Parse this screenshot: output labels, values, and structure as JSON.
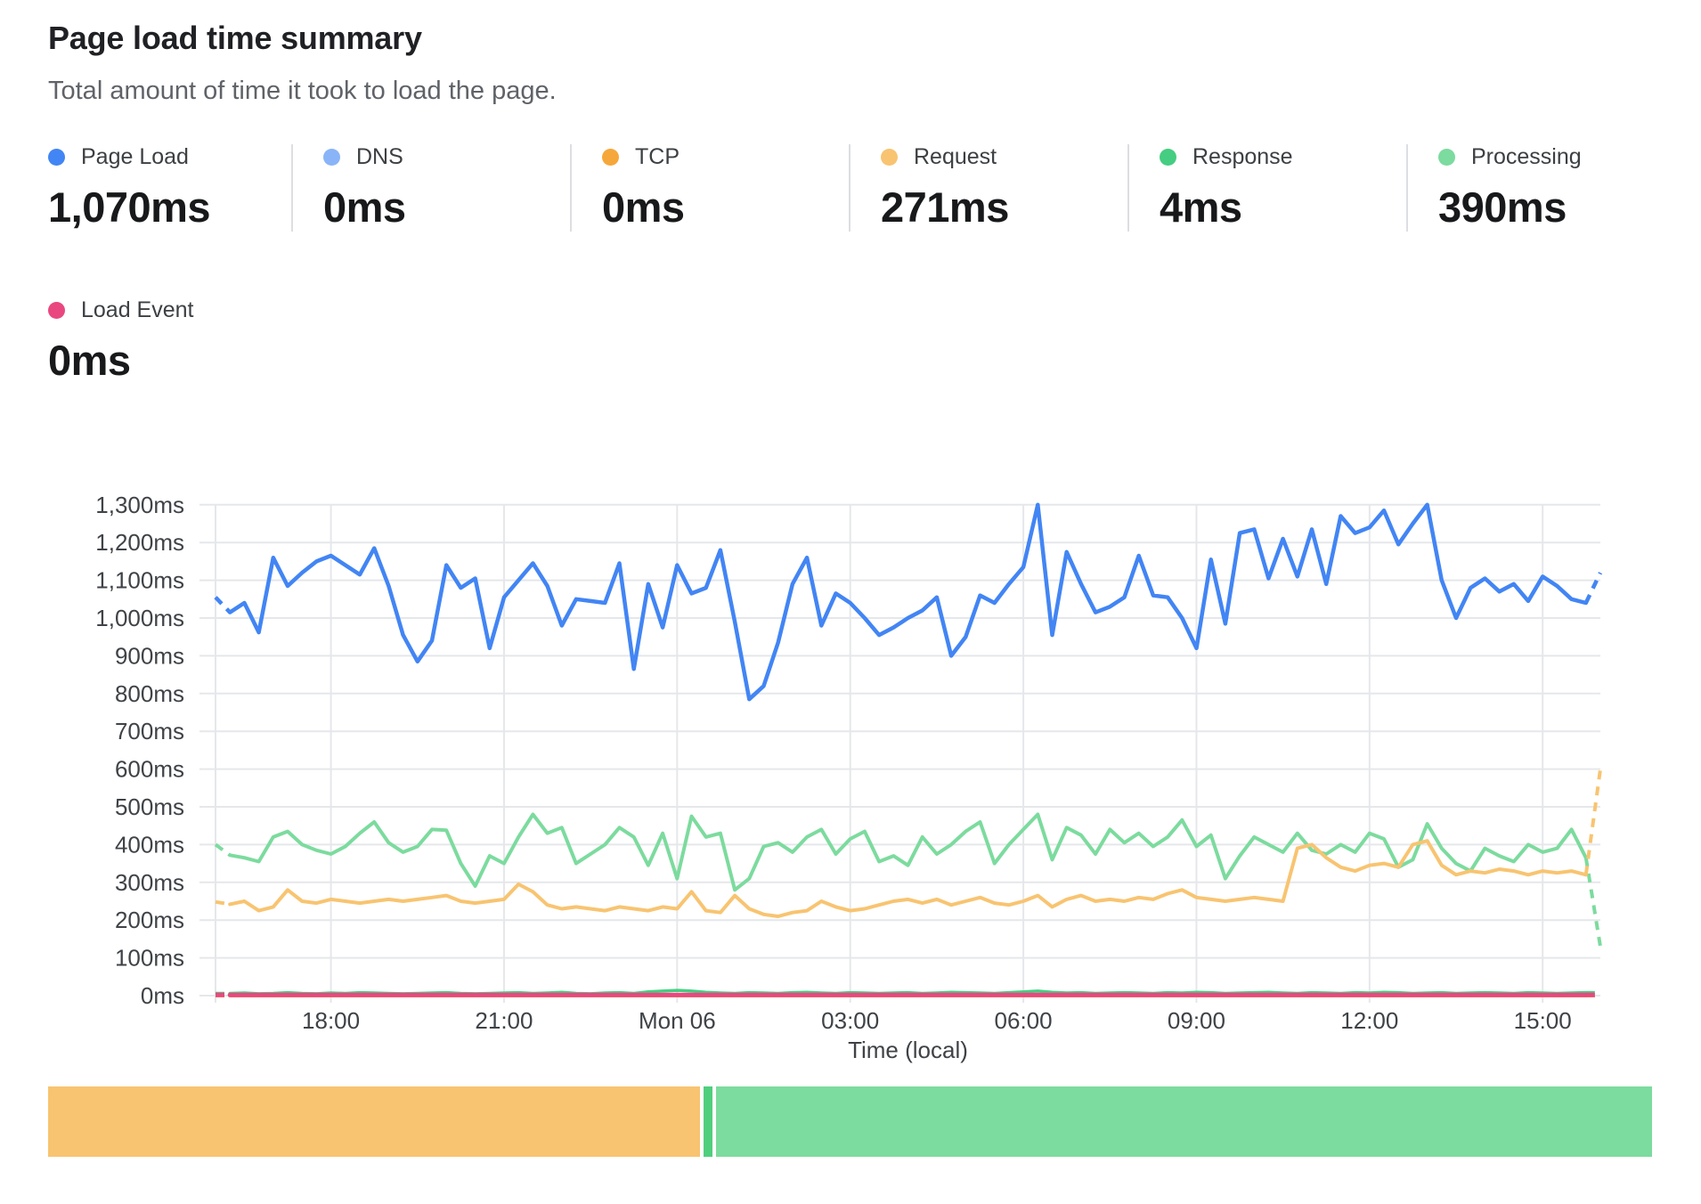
{
  "header": {
    "title": "Page load time summary",
    "subtitle": "Total amount of time it took to load the page."
  },
  "stats": [
    {
      "label": "Page Load",
      "value": "1,070ms",
      "color": "#4285f4"
    },
    {
      "label": "DNS",
      "value": "0ms",
      "color": "#8ab4f8"
    },
    {
      "label": "TCP",
      "value": "0ms",
      "color": "#f6a73b"
    },
    {
      "label": "Request",
      "value": "271ms",
      "color": "#f8c471"
    },
    {
      "label": "Response",
      "value": "4ms",
      "color": "#45cd81"
    },
    {
      "label": "Processing",
      "value": "390ms",
      "color": "#7cdb9e"
    },
    {
      "label": "Load Event",
      "value": "0ms",
      "color": "#e9477f"
    }
  ],
  "chart_data": {
    "type": "line",
    "title": "Page load time summary",
    "xlabel": "Time (local)",
    "ylabel": "",
    "grid": true,
    "ylim": [
      0,
      1300
    ],
    "x_range_hours": 24,
    "points_per_series": 97,
    "y_ticks": [
      {
        "value": 0,
        "label": "0ms"
      },
      {
        "value": 100,
        "label": "100ms"
      },
      {
        "value": 200,
        "label": "200ms"
      },
      {
        "value": 300,
        "label": "300ms"
      },
      {
        "value": 400,
        "label": "400ms"
      },
      {
        "value": 500,
        "label": "500ms"
      },
      {
        "value": 600,
        "label": "600ms"
      },
      {
        "value": 700,
        "label": "700ms"
      },
      {
        "value": 800,
        "label": "800ms"
      },
      {
        "value": 900,
        "label": "900ms"
      },
      {
        "value": 1000,
        "label": "1,000ms"
      },
      {
        "value": 1100,
        "label": "1,100ms"
      },
      {
        "value": 1200,
        "label": "1,200ms"
      },
      {
        "value": 1300,
        "label": "1,300ms"
      }
    ],
    "x_ticks": [
      {
        "index": 8,
        "label": "18:00"
      },
      {
        "index": 20,
        "label": "21:00"
      },
      {
        "index": 32,
        "label": "Mon 06"
      },
      {
        "index": 44,
        "label": "03:00"
      },
      {
        "index": 56,
        "label": "06:00"
      },
      {
        "index": 68,
        "label": "09:00"
      },
      {
        "index": 80,
        "label": "12:00"
      },
      {
        "index": 92,
        "label": "15:00"
      }
    ],
    "series": [
      {
        "name": "DNS",
        "color": "#8ab4f8",
        "width": 4,
        "constant": 0
      },
      {
        "name": "TCP",
        "color": "#f6a73b",
        "width": 4,
        "constant": 0
      },
      {
        "name": "Response",
        "color": "#45cd81",
        "width": 3.5,
        "values": [
          6,
          6,
          7,
          5,
          6,
          8,
          6,
          5,
          7,
          6,
          8,
          7,
          6,
          5,
          6,
          7,
          8,
          6,
          5,
          6,
          7,
          8,
          6,
          7,
          9,
          6,
          5,
          7,
          8,
          6,
          10,
          12,
          14,
          12,
          9,
          7,
          6,
          8,
          7,
          6,
          8,
          9,
          7,
          6,
          8,
          7,
          6,
          7,
          8,
          6,
          7,
          9,
          8,
          7,
          6,
          8,
          10,
          12,
          9,
          7,
          8,
          6,
          7,
          8,
          7,
          6,
          8,
          7,
          9,
          8,
          6,
          7,
          8,
          9,
          7,
          6,
          8,
          7,
          6,
          8,
          7,
          9,
          8,
          6,
          7,
          8,
          6,
          7,
          8,
          7,
          6,
          8,
          7,
          6,
          7,
          8,
          8
        ]
      },
      {
        "name": "Processing",
        "color": "#7cdb9e",
        "width": 4,
        "values": [
          400,
          372,
          365,
          355,
          420,
          435,
          400,
          385,
          375,
          395,
          430,
          460,
          405,
          380,
          395,
          440,
          438,
          350,
          290,
          370,
          350,
          420,
          480,
          430,
          445,
          350,
          375,
          400,
          445,
          420,
          345,
          430,
          310,
          475,
          420,
          430,
          280,
          310,
          395,
          405,
          380,
          420,
          440,
          375,
          415,
          435,
          355,
          370,
          345,
          420,
          375,
          400,
          435,
          460,
          350,
          400,
          440,
          480,
          360,
          445,
          425,
          375,
          440,
          405,
          430,
          395,
          420,
          465,
          395,
          425,
          310,
          370,
          420,
          400,
          380,
          430,
          385,
          375,
          400,
          380,
          430,
          415,
          340,
          360,
          455,
          390,
          350,
          330,
          390,
          370,
          355,
          400,
          380,
          390,
          440,
          365,
          130
        ]
      },
      {
        "name": "Request",
        "color": "#f8c471",
        "width": 4,
        "values": [
          248,
          242,
          250,
          225,
          235,
          280,
          250,
          245,
          255,
          250,
          245,
          250,
          255,
          250,
          255,
          260,
          265,
          250,
          245,
          250,
          255,
          295,
          275,
          240,
          230,
          235,
          230,
          225,
          235,
          230,
          225,
          235,
          230,
          275,
          225,
          220,
          265,
          230,
          215,
          210,
          220,
          225,
          250,
          235,
          225,
          230,
          240,
          250,
          255,
          245,
          255,
          240,
          250,
          260,
          245,
          240,
          250,
          265,
          235,
          255,
          265,
          250,
          255,
          250,
          260,
          255,
          270,
          280,
          260,
          255,
          250,
          255,
          260,
          255,
          250,
          390,
          400,
          365,
          340,
          330,
          345,
          350,
          340,
          400,
          410,
          345,
          320,
          330,
          325,
          335,
          330,
          320,
          330,
          325,
          330,
          320,
          600
        ]
      },
      {
        "name": "Page Load",
        "color": "#4285f4",
        "width": 4.5,
        "values": [
          1055,
          1015,
          1040,
          962,
          1160,
          1085,
          1120,
          1150,
          1165,
          1140,
          1115,
          1185,
          1085,
          955,
          885,
          940,
          1140,
          1080,
          1105,
          920,
          1055,
          1100,
          1145,
          1085,
          980,
          1050,
          1045,
          1040,
          1145,
          865,
          1090,
          975,
          1140,
          1065,
          1080,
          1180,
          990,
          785,
          820,
          935,
          1090,
          1160,
          980,
          1065,
          1040,
          1000,
          955,
          975,
          1000,
          1020,
          1055,
          900,
          950,
          1060,
          1040,
          1090,
          1135,
          1300,
          955,
          1175,
          1090,
          1015,
          1030,
          1055,
          1165,
          1060,
          1055,
          1000,
          920,
          1155,
          985,
          1225,
          1235,
          1105,
          1210,
          1110,
          1235,
          1090,
          1270,
          1225,
          1240,
          1285,
          1195,
          1250,
          1300,
          1100,
          1000,
          1080,
          1105,
          1070,
          1090,
          1045,
          1110,
          1085,
          1050,
          1040,
          1120
        ]
      },
      {
        "name": "Load Event",
        "color": "#e9477f",
        "width": 5,
        "constant": 2
      }
    ]
  },
  "breakdown_bar": {
    "segments": [
      {
        "name": "request-share",
        "color": "#f8c471",
        "width": "40.6%"
      },
      {
        "name": "response-share",
        "color": "#4fcf7d",
        "width": "0.55%"
      },
      {
        "name": "processing-share",
        "color": "#7cdb9e",
        "width": "58.3%"
      }
    ]
  }
}
